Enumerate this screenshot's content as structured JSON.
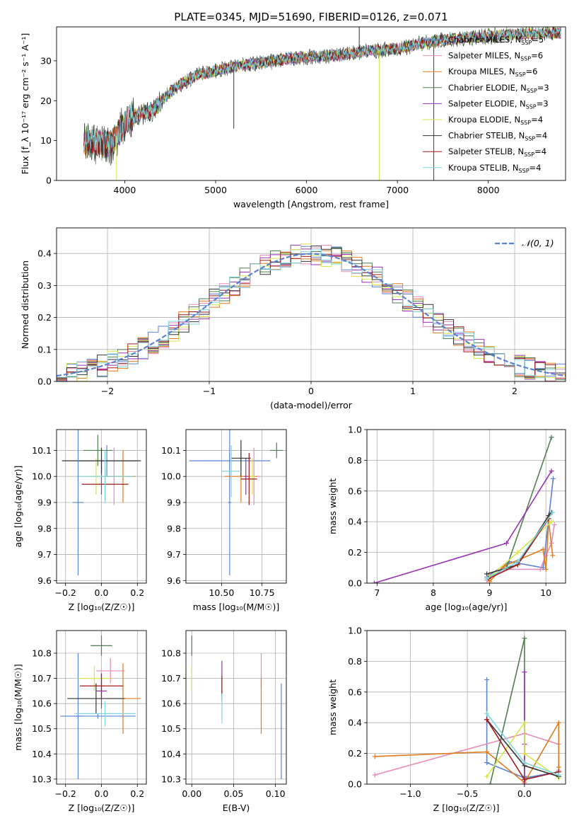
{
  "figure": {
    "title": "PLATE=0345, MJD=51690, FIBERID=0126, z=0.071"
  },
  "chart_data": [
    {
      "id": "spectrum",
      "type": "line",
      "xlabel": "wavelength [Angstrom, rest frame]",
      "ylabel": "Flux [f_λ 10⁻¹⁷ erg cm⁻² s⁻¹ A⁻¹]",
      "xlim": [
        3250,
        8850
      ],
      "ylim": [
        0,
        38.5
      ],
      "xticks": [
        "4000",
        "5000",
        "6000",
        "7000",
        "8000"
      ],
      "xtick_values": [
        4000,
        5000,
        6000,
        7000,
        8000
      ],
      "yticks": [
        "0",
        "10",
        "20",
        "30"
      ],
      "ytick_values": [
        0,
        10,
        20,
        30
      ],
      "grid": false,
      "legend_position": "right",
      "continuum": {
        "x": [
          3550,
          3700,
          3850,
          3950,
          4050,
          4150,
          4300,
          4450,
          4600,
          4800,
          5000,
          5200,
          5500,
          5800,
          6100,
          6400,
          6700,
          7000,
          7300,
          7600,
          7900,
          8200,
          8500,
          8800
        ],
        "y": [
          9.5,
          9.5,
          9.0,
          12.5,
          15.5,
          16.5,
          17.5,
          21.0,
          24.0,
          26.5,
          27.5,
          28.5,
          29.5,
          30.5,
          31.0,
          31.5,
          32.5,
          33.0,
          34.5,
          35.5,
          36.0,
          36.5,
          36.8,
          37.0
        ]
      },
      "series": [
        {
          "name": "Chabrier MILES, N_SSP=5",
          "name_main": "Chabrier MILES, N",
          "name_sub": "SSP",
          "name_tail": "=5",
          "color": "#5a83d6"
        },
        {
          "name": "Salpeter MILES, N_SSP=6",
          "name_main": "Salpeter MILES, N",
          "name_sub": "SSP",
          "name_tail": "=6",
          "color": "#e88ab8"
        },
        {
          "name": "Kroupa MILES, N_SSP=6",
          "name_main": "Kroupa MILES, N",
          "name_sub": "SSP",
          "name_tail": "=6",
          "color": "#e07b1f"
        },
        {
          "name": "Chabrier ELODIE, N_SSP=3",
          "name_main": "Chabrier ELODIE, N",
          "name_sub": "SSP",
          "name_tail": "=3",
          "color": "#4f7f4f"
        },
        {
          "name": "Salpeter ELODIE, N_SSP=3",
          "name_main": "Salpeter ELODIE, N",
          "name_sub": "SSP",
          "name_tail": "=3",
          "color": "#9b30b5"
        },
        {
          "name": "Kroupa ELODIE, N_SSP=4",
          "name_main": "Kroupa ELODIE, N",
          "name_sub": "SSP",
          "name_tail": "=4",
          "color": "#d7e64a"
        },
        {
          "name": "Chabrier STELIB, N_SSP=4",
          "name_main": "Chabrier STELIB, N",
          "name_sub": "SSP",
          "name_tail": "=4",
          "color": "#333333"
        },
        {
          "name": "Salpeter STELIB, N_SSP=4",
          "name_main": "Salpeter STELIB, N",
          "name_sub": "SSP",
          "name_tail": "=4",
          "color": "#a01a1a"
        },
        {
          "name": "Kroupa STELIB, N_SSP=4",
          "name_main": "Kroupa STELIB, N",
          "name_sub": "SSP",
          "name_tail": "=4",
          "color": "#7fd6e0"
        }
      ]
    },
    {
      "id": "residuals",
      "type": "step-histogram",
      "xlabel": "(data-model)/error",
      "ylabel": "Normed distribution",
      "xlim": [
        -2.5,
        2.5
      ],
      "ylim": [
        0,
        0.48
      ],
      "xticks": [
        "−2",
        "−1",
        "0",
        "1",
        "2"
      ],
      "xtick_values": [
        -2,
        -1,
        0,
        1,
        2
      ],
      "yticks": [
        "0.0",
        "0.1",
        "0.2",
        "0.3",
        "0.4"
      ],
      "ytick_values": [
        0,
        0.1,
        0.2,
        0.3,
        0.4
      ],
      "grid": true,
      "bins": [
        -2.5,
        -2.4,
        -2.3,
        -2.2,
        -2.1,
        -2.0,
        -1.9,
        -1.8,
        -1.7,
        -1.6,
        -1.5,
        -1.4,
        -1.3,
        -1.2,
        -1.1,
        -1.0,
        -0.9,
        -0.8,
        -0.7,
        -0.6,
        -0.5,
        -0.4,
        -0.3,
        -0.2,
        -0.1,
        0.0,
        0.1,
        0.2,
        0.3,
        0.4,
        0.5,
        0.6,
        0.7,
        0.8,
        0.9,
        1.0,
        1.1,
        1.2,
        1.3,
        1.4,
        1.5,
        1.6,
        1.7,
        1.8,
        1.9,
        2.0,
        2.1,
        2.2,
        2.3,
        2.4,
        2.5
      ],
      "gaussian_label": "𝒩(0, 1)",
      "gaussian_color": "#5a83d6"
    },
    {
      "id": "age-vs-Z",
      "type": "errorbar",
      "xlabel": "Z [log₁₀(Z/Z☉)]",
      "ylabel": "age  [log₁₀(age/yr)]",
      "xlim": [
        -0.25,
        0.25
      ],
      "ylim": [
        9.59,
        10.18
      ],
      "xticks": [
        "−0.2",
        "0.0",
        "0.2"
      ],
      "xtick_values": [
        -0.2,
        0.0,
        0.2
      ],
      "yticks": [
        "9.6",
        "9.7",
        "9.8",
        "9.9",
        "10.0",
        "10.1"
      ],
      "ytick_values": [
        9.6,
        9.7,
        9.8,
        9.9,
        10.0,
        10.1
      ],
      "grid": true,
      "points": [
        {
          "x": 0.03,
          "xerr": 0.17,
          "y": 10.06,
          "yerr": 0.06,
          "color": "#5a83d6"
        },
        {
          "x": 0.07,
          "xerr": 0.04,
          "y": 10.0,
          "yerr": 0.11,
          "color": "#e88ab8"
        },
        {
          "x": 0.12,
          "xerr": 0.07,
          "y": 10.0,
          "yerr": 0.1,
          "color": "#e07b1f"
        },
        {
          "x": -0.02,
          "xerr": 0.08,
          "y": 10.1,
          "yerr": 0.06,
          "color": "#4f7f4f"
        },
        {
          "x": 0.0,
          "xerr": 0.04,
          "y": 10.0,
          "yerr": 0.07,
          "color": "#9b30b5"
        },
        {
          "x": -0.03,
          "xerr": 0.07,
          "y": 10.0,
          "yerr": 0.07,
          "color": "#d7e64a"
        },
        {
          "x": 0.0,
          "xerr": 0.22,
          "y": 10.06,
          "yerr": 0.05,
          "color": "#333333"
        },
        {
          "x": 0.02,
          "xerr": 0.13,
          "y": 9.97,
          "yerr": 0.06,
          "color": "#a01a1a"
        },
        {
          "x": 0.02,
          "xerr": 0.16,
          "y": 10.0,
          "yerr": 0.1,
          "color": "#7fd6e0"
        },
        {
          "x": -0.13,
          "xerr": 0.03,
          "y": 9.9,
          "yerr": 0.28,
          "color": "#5a83d6"
        }
      ]
    },
    {
      "id": "age-vs-mass",
      "type": "errorbar",
      "xlabel": "mass [log₁₀(M/M☉)]",
      "ylabel": "",
      "xlim": [
        10.28,
        10.9
      ],
      "ylim": [
        9.59,
        10.18
      ],
      "xticks": [
        "10.50",
        "10.75"
      ],
      "xtick_values": [
        10.5,
        10.75
      ],
      "yticks": [
        "9.6",
        "9.7",
        "9.8",
        "9.9",
        "10.0",
        "10.1"
      ],
      "ytick_values": [
        9.6,
        9.7,
        9.8,
        9.9,
        10.0,
        10.1
      ],
      "grid": true,
      "points": [
        {
          "x": 10.55,
          "xerr": 0.25,
          "y": 10.06,
          "yerr": 0.03,
          "color": "#5a83d6"
        },
        {
          "x": 10.55,
          "xerr": 0.01,
          "y": 9.9,
          "yerr": 0.28,
          "color": "#5a83d6"
        },
        {
          "x": 10.7,
          "xerr": 0.04,
          "y": 10.0,
          "yerr": 0.11,
          "color": "#e88ab8"
        },
        {
          "x": 10.62,
          "xerr": 0.1,
          "y": 10.0,
          "yerr": 0.1,
          "color": "#e07b1f"
        },
        {
          "x": 10.84,
          "xerr": 0.04,
          "y": 10.1,
          "yerr": 0.03,
          "color": "#4f7f4f"
        },
        {
          "x": 10.65,
          "xerr": 0.01,
          "y": 10.0,
          "yerr": 0.07,
          "color": "#9b30b5"
        },
        {
          "x": 10.69,
          "xerr": 0.02,
          "y": 10.0,
          "yerr": 0.07,
          "color": "#d7e64a"
        },
        {
          "x": 10.62,
          "xerr": 0.06,
          "y": 10.07,
          "yerr": 0.07,
          "color": "#333333"
        },
        {
          "x": 10.67,
          "xerr": 0.05,
          "y": 9.99,
          "yerr": 0.1,
          "color": "#a01a1a"
        },
        {
          "x": 10.56,
          "xerr": 0.06,
          "y": 10.02,
          "yerr": 0.1,
          "color": "#7fd6e0"
        }
      ]
    },
    {
      "id": "weight-vs-age",
      "type": "line",
      "xlabel": "age  [log₁₀(age/yr)]",
      "ylabel": "mass weight",
      "xlim": [
        6.82,
        10.35
      ],
      "ylim": [
        0,
        1.0
      ],
      "xticks": [
        "7",
        "8",
        "9",
        "10"
      ],
      "xtick_values": [
        7,
        8,
        9,
        10
      ],
      "yticks": [
        "0.0",
        "0.2",
        "0.4",
        "0.6",
        "0.8",
        "1.0"
      ],
      "ytick_values": [
        0,
        0.2,
        0.4,
        0.6,
        0.8,
        1.0
      ],
      "grid": true,
      "series": [
        {
          "name": "Chabrier MILES",
          "color": "#5a83d6",
          "x": [
            8.95,
            9.35,
            9.95,
            10.13
          ],
          "y": [
            0.04,
            0.14,
            0.1,
            0.68
          ]
        },
        {
          "name": "Salpeter MILES",
          "color": "#e88ab8",
          "x": [
            8.95,
            9.25,
            9.9,
            10.0,
            10.1,
            10.15
          ],
          "y": [
            0.02,
            0.09,
            0.09,
            0.18,
            0.26,
            0.38
          ]
        },
        {
          "name": "Kroupa MILES",
          "color": "#e07b1f",
          "x": [
            9.0,
            9.25,
            9.95,
            10.0,
            10.05,
            10.12
          ],
          "y": [
            0.01,
            0.11,
            0.22,
            0.09,
            0.4,
            0.18
          ]
        },
        {
          "name": "Chabrier ELODIE",
          "color": "#4f7f4f",
          "x": [
            9.0,
            9.3,
            10.1
          ],
          "y": [
            0.04,
            0.1,
            0.95
          ]
        },
        {
          "name": "Salpeter ELODIE",
          "color": "#9b30b5",
          "x": [
            6.95,
            9.3,
            10.1
          ],
          "y": [
            0.0,
            0.26,
            0.73
          ]
        },
        {
          "name": "Kroupa ELODIE",
          "color": "#d7e64a",
          "x": [
            9.0,
            9.5,
            10.1
          ],
          "y": [
            0.04,
            0.2,
            0.4
          ]
        },
        {
          "name": "Chabrier STELIB",
          "color": "#333333",
          "x": [
            8.95,
            9.5,
            10.05,
            10.1
          ],
          "y": [
            0.06,
            0.12,
            0.44,
            0.46
          ]
        },
        {
          "name": "Salpeter STELIB",
          "color": "#a01a1a",
          "x": [
            8.98,
            9.5,
            10.05
          ],
          "y": [
            0.03,
            0.12,
            0.42
          ]
        },
        {
          "name": "Kroupa STELIB",
          "color": "#7fd6e0",
          "x": [
            8.95,
            9.5,
            10.12
          ],
          "y": [
            0.03,
            0.14,
            0.46
          ]
        }
      ]
    },
    {
      "id": "mass-vs-Z",
      "type": "errorbar",
      "xlabel": "Z [log₁₀(Z/Z☉)]",
      "ylabel": "mass [log₁₀(M/M☉)]",
      "xlim": [
        -0.25,
        0.25
      ],
      "ylim": [
        10.28,
        10.89
      ],
      "xticks": [
        "−0.2",
        "0.0",
        "0.2"
      ],
      "xtick_values": [
        -0.2,
        0.0,
        0.2
      ],
      "yticks": [
        "10.3",
        "10.4",
        "10.5",
        "10.6",
        "10.7",
        "10.8"
      ],
      "ytick_values": [
        10.3,
        10.4,
        10.5,
        10.6,
        10.7,
        10.8
      ],
      "grid": true,
      "points": [
        {
          "x": -0.13,
          "xerr": 0.03,
          "y": 10.55,
          "yerr": 0.25,
          "color": "#5a83d6"
        },
        {
          "x": -0.02,
          "xerr": 0.21,
          "y": 10.55,
          "yerr": 0.01,
          "color": "#5a83d6"
        },
        {
          "x": 0.05,
          "xerr": 0.08,
          "y": 10.73,
          "yerr": 0.05,
          "color": "#e88ab8"
        },
        {
          "x": 0.12,
          "xerr": 0.1,
          "y": 10.62,
          "yerr": 0.14,
          "color": "#e07b1f"
        },
        {
          "x": 0.0,
          "xerr": 0.06,
          "y": 10.83,
          "yerr": 0.04,
          "color": "#4f7f4f"
        },
        {
          "x": 0.0,
          "xerr": 0.03,
          "y": 10.65,
          "yerr": 0.07,
          "color": "#9b30b5"
        },
        {
          "x": -0.04,
          "xerr": 0.09,
          "y": 10.7,
          "yerr": 0.05,
          "color": "#d7e64a"
        },
        {
          "x": -0.03,
          "xerr": 0.16,
          "y": 10.62,
          "yerr": 0.06,
          "color": "#333333"
        },
        {
          "x": 0.0,
          "xerr": 0.12,
          "y": 10.67,
          "yerr": 0.05,
          "color": "#a01a1a"
        },
        {
          "x": 0.02,
          "xerr": 0.17,
          "y": 10.56,
          "yerr": 0.05,
          "color": "#7fd6e0"
        }
      ]
    },
    {
      "id": "mass-vs-ebv",
      "type": "errorbar",
      "xlabel": "E(B-V)",
      "ylabel": "",
      "xlim": [
        -0.007,
        0.113
      ],
      "ylim": [
        10.28,
        10.89
      ],
      "xticks": [
        "0.00",
        "0.05",
        "0.10"
      ],
      "xtick_values": [
        0.0,
        0.05,
        0.1
      ],
      "yticks": [
        "10.3",
        "10.4",
        "10.5",
        "10.6",
        "10.7",
        "10.8"
      ],
      "ytick_values": [
        10.3,
        10.4,
        10.5,
        10.6,
        10.7,
        10.8
      ],
      "grid": true,
      "points": [
        {
          "x": 0.0,
          "xerr": 0,
          "y": 10.83,
          "yerr": 0.04,
          "color": "#4f7f4f"
        },
        {
          "x": 0.0,
          "xerr": 0,
          "y": 10.7,
          "yerr": 0.05,
          "color": "#d7e64a"
        },
        {
          "x": 0.036,
          "xerr": 0,
          "y": 10.7,
          "yerr": 0.07,
          "color": "#9b30b5"
        },
        {
          "x": 0.036,
          "xerr": 0,
          "y": 10.66,
          "yerr": 0.05,
          "color": "#a01a1a"
        },
        {
          "x": 0.036,
          "xerr": 0,
          "y": 10.58,
          "yerr": 0.06,
          "color": "#7fd6e0"
        },
        {
          "x": 0.083,
          "xerr": 0,
          "y": 10.73,
          "yerr": 0.07,
          "color": "#e88ab8"
        },
        {
          "x": 0.083,
          "xerr": 0,
          "y": 10.59,
          "yerr": 0.11,
          "color": "#e07b1f"
        },
        {
          "x": 0.107,
          "xerr": 0,
          "y": 10.49,
          "yerr": 0.19,
          "color": "#5a83d6"
        }
      ]
    },
    {
      "id": "weight-vs-Z",
      "type": "line",
      "xlabel": "Z [log₁₀(Z/Z☉)]",
      "ylabel": "mass weight",
      "xlim": [
        -1.38,
        0.36
      ],
      "ylim": [
        0,
        1.0
      ],
      "xticks": [
        "−1.0",
        "−0.5",
        "0.0"
      ],
      "xtick_values": [
        -1.0,
        -0.5,
        0.0
      ],
      "yticks": [
        "0.0",
        "0.2",
        "0.4",
        "0.6",
        "0.8",
        "1.0"
      ],
      "ytick_values": [
        0,
        0.2,
        0.4,
        0.6,
        0.8,
        1.0
      ],
      "grid": true,
      "series": [
        {
          "name": "Chabrier MILES",
          "color": "#5a83d6",
          "x": [
            -0.33,
            -0.33,
            0.0,
            0.3
          ],
          "y": [
            0.68,
            0.14,
            0.04,
            0.08
          ]
        },
        {
          "name": "Salpeter MILES",
          "color": "#e88ab8",
          "x": [
            -1.31,
            0.0,
            0.3,
            0.3
          ],
          "y": [
            0.06,
            0.33,
            0.26,
            0.09
          ]
        },
        {
          "name": "Kroupa MILES",
          "color": "#e07b1f",
          "x": [
            -1.31,
            -0.33,
            0.0,
            0.3,
            0.3
          ],
          "y": [
            0.18,
            0.21,
            0.01,
            0.4,
            0.11
          ]
        },
        {
          "name": "Chabrier ELODIE",
          "color": "#4f7f4f",
          "x": [
            -0.3,
            0.0,
            0.0
          ],
          "y": [
            0.0,
            0.95,
            0.05
          ]
        },
        {
          "name": "Salpeter ELODIE",
          "color": "#9b30b5",
          "x": [
            0.0,
            0.0,
            0.0
          ],
          "y": [
            0.73,
            0.26,
            0.0
          ]
        },
        {
          "name": "Kroupa ELODIE",
          "color": "#d7e64a",
          "x": [
            -0.33,
            0.0,
            0.0,
            0.3
          ],
          "y": [
            0.05,
            0.4,
            0.2,
            0.04
          ]
        },
        {
          "name": "Chabrier STELIB",
          "color": "#333333",
          "x": [
            -0.33,
            0.0,
            0.3
          ],
          "y": [
            0.42,
            0.12,
            0.05
          ]
        },
        {
          "name": "Salpeter STELIB",
          "color": "#a01a1a",
          "x": [
            -0.33,
            0.0,
            0.3
          ],
          "y": [
            0.42,
            0.03,
            0.08
          ]
        },
        {
          "name": "Kroupa STELIB",
          "color": "#7fd6e0",
          "x": [
            -0.33,
            0.0,
            0.3
          ],
          "y": [
            0.46,
            0.14,
            0.06
          ]
        }
      ]
    }
  ]
}
